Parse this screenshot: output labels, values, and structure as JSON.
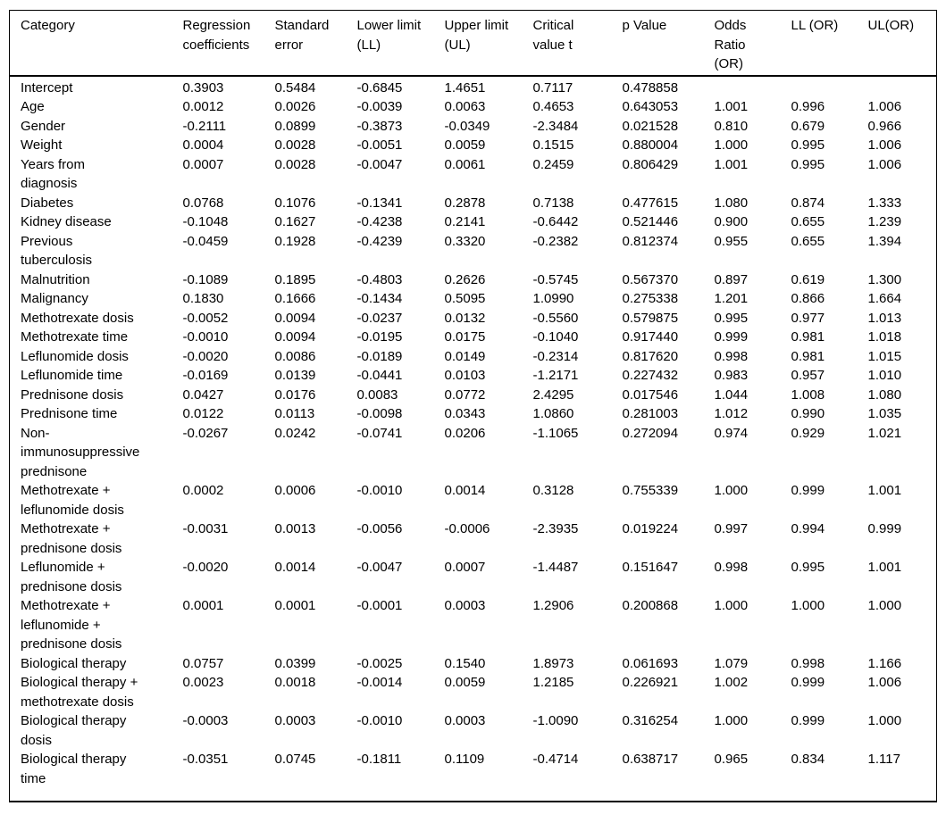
{
  "colors": {
    "text": "#000000",
    "border": "#000000",
    "background": "#ffffff"
  },
  "table": {
    "columns": [
      "Category",
      "Regression coefficients",
      "Standard error",
      "Lower limit (LL)",
      "Upper limit (UL)",
      "Critical value t",
      "p Value",
      "Odds Ratio (OR)",
      "LL (OR)",
      "UL(OR)"
    ],
    "rows": [
      [
        "Intercept",
        "0.3903",
        "0.5484",
        "-0.6845",
        "1.4651",
        "0.7117",
        "0.478858",
        "",
        "",
        ""
      ],
      [
        "Age",
        "0.0012",
        "0.0026",
        "-0.0039",
        "0.0063",
        "0.4653",
        "0.643053",
        "1.001",
        "0.996",
        "1.006"
      ],
      [
        "Gender",
        "-0.2111",
        "0.0899",
        "-0.3873",
        "-0.0349",
        "-2.3484",
        "0.021528",
        "0.810",
        "0.679",
        "0.966"
      ],
      [
        "Weight",
        "0.0004",
        "0.0028",
        "-0.0051",
        "0.0059",
        "0.1515",
        "0.880004",
        "1.000",
        "0.995",
        "1.006"
      ],
      [
        "Years from diagnosis",
        "0.0007",
        "0.0028",
        "-0.0047",
        "0.0061",
        "0.2459",
        "0.806429",
        "1.001",
        "0.995",
        "1.006"
      ],
      [
        "Diabetes",
        "0.0768",
        "0.1076",
        "-0.1341",
        "0.2878",
        "0.7138",
        "0.477615",
        "1.080",
        "0.874",
        "1.333"
      ],
      [
        "Kidney disease",
        "-0.1048",
        "0.1627",
        "-0.4238",
        "0.2141",
        "-0.6442",
        "0.521446",
        "0.900",
        "0.655",
        "1.239"
      ],
      [
        "Previous tuberculosis",
        "-0.0459",
        "0.1928",
        "-0.4239",
        "0.3320",
        "-0.2382",
        "0.812374",
        "0.955",
        "0.655",
        "1.394"
      ],
      [
        "Malnutrition",
        "-0.1089",
        "0.1895",
        "-0.4803",
        "0.2626",
        "-0.5745",
        "0.567370",
        "0.897",
        "0.619",
        "1.300"
      ],
      [
        "Malignancy",
        "0.1830",
        "0.1666",
        "-0.1434",
        "0.5095",
        "1.0990",
        "0.275338",
        "1.201",
        "0.866",
        "1.664"
      ],
      [
        "Methotrexate dosis",
        "-0.0052",
        "0.0094",
        "-0.0237",
        "0.0132",
        "-0.5560",
        "0.579875",
        "0.995",
        "0.977",
        "1.013"
      ],
      [
        "Methotrexate time",
        "-0.0010",
        "0.0094",
        "-0.0195",
        "0.0175",
        "-0.1040",
        "0.917440",
        "0.999",
        "0.981",
        "1.018"
      ],
      [
        "Leflunomide dosis",
        "-0.0020",
        "0.0086",
        "-0.0189",
        "0.0149",
        "-0.2314",
        "0.817620",
        "0.998",
        "0.981",
        "1.015"
      ],
      [
        "Leflunomide time",
        "-0.0169",
        "0.0139",
        "-0.0441",
        "0.0103",
        "-1.2171",
        "0.227432",
        "0.983",
        "0.957",
        "1.010"
      ],
      [
        "Prednisone dosis",
        "0.0427",
        "0.0176",
        "0.0083",
        "0.0772",
        "2.4295",
        "0.017546",
        "1.044",
        "1.008",
        "1.080"
      ],
      [
        "Prednisone time",
        "0.0122",
        "0.0113",
        "-0.0098",
        "0.0343",
        "1.0860",
        "0.281003",
        "1.012",
        "0.990",
        "1.035"
      ],
      [
        "Non-immunosuppressive prednisone",
        "-0.0267",
        "0.0242",
        "-0.0741",
        "0.0206",
        "-1.1065",
        "0.272094",
        "0.974",
        "0.929",
        "1.021"
      ],
      [
        "Methotrexate + leflunomide dosis",
        "0.0002",
        "0.0006",
        "-0.0010",
        "0.0014",
        "0.3128",
        "0.755339",
        "1.000",
        "0.999",
        "1.001"
      ],
      [
        "Methotrexate + prednisone dosis",
        "-0.0031",
        "0.0013",
        "-0.0056",
        "-0.0006",
        "-2.3935",
        "0.019224",
        "0.997",
        "0.994",
        "0.999"
      ],
      [
        "Leflunomide + prednisone dosis",
        "-0.0020",
        "0.0014",
        "-0.0047",
        "0.0007",
        "-1.4487",
        "0.151647",
        "0.998",
        "0.995",
        "1.001"
      ],
      [
        "Methotrexate + leflunomide + prednisone dosis",
        "0.0001",
        "0.0001",
        "-0.0001",
        "0.0003",
        "1.2906",
        "0.200868",
        "1.000",
        "1.000",
        "1.000"
      ],
      [
        "Biological therapy",
        "0.0757",
        "0.0399",
        "-0.0025",
        "0.1540",
        "1.8973",
        "0.061693",
        "1.079",
        "0.998",
        "1.166"
      ],
      [
        "Biological therapy + methotrexate dosis",
        "0.0023",
        "0.0018",
        "-0.0014",
        "0.0059",
        "1.2185",
        "0.226921",
        "1.002",
        "0.999",
        "1.006"
      ],
      [
        "Biological therapy dosis",
        "-0.0003",
        "0.0003",
        "-0.0010",
        "0.0003",
        "-1.0090",
        "0.316254",
        "1.000",
        "0.999",
        "1.000"
      ],
      [
        "Biological therapy time",
        "-0.0351",
        "0.0745",
        "-0.1811",
        "0.1109",
        "-0.4714",
        "0.638717",
        "0.965",
        "0.834",
        "1.117"
      ]
    ]
  }
}
